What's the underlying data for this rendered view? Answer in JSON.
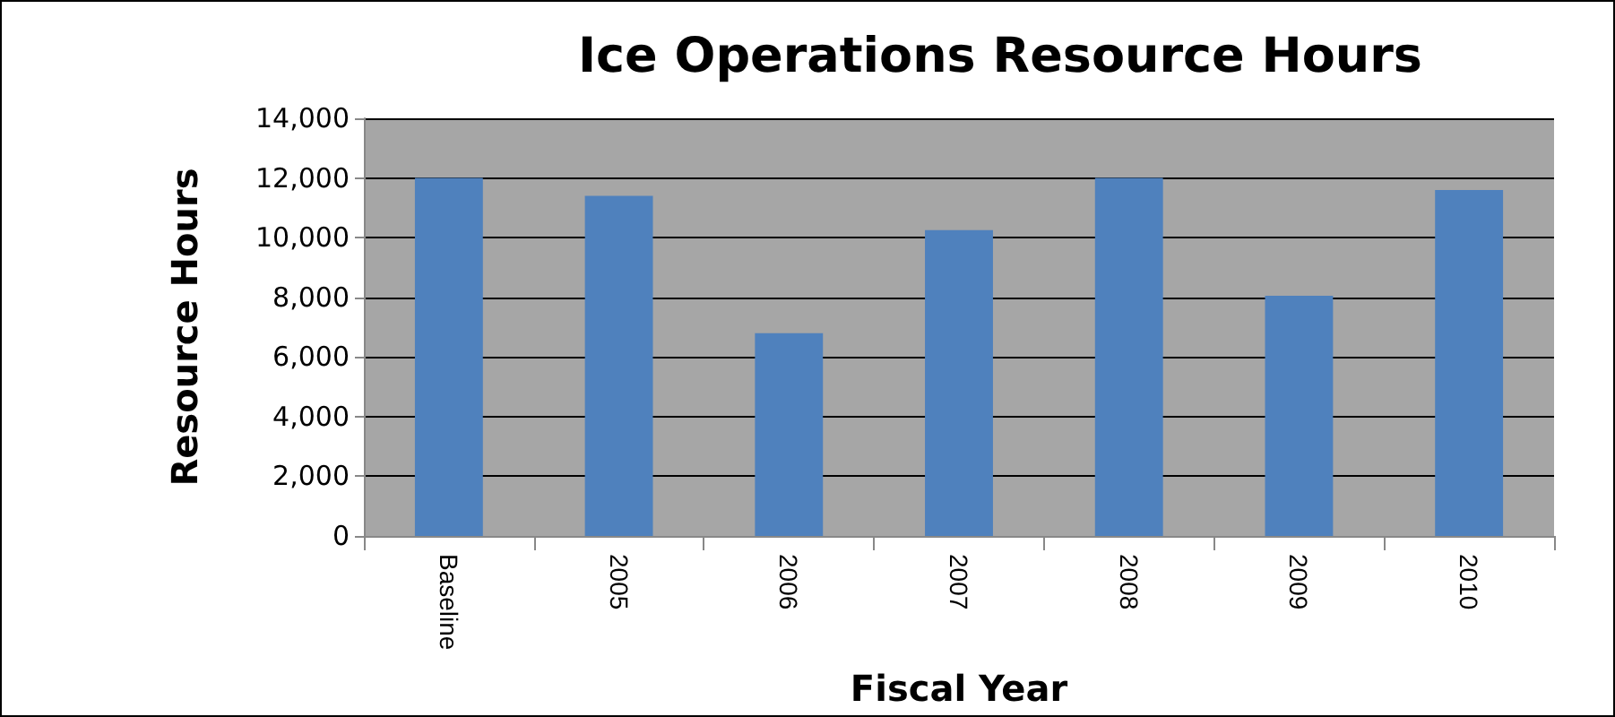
{
  "chart_data": {
    "type": "bar",
    "title": "Ice Operations Resource Hours",
    "xlabel": "Fiscal Year",
    "ylabel": "Resource Hours",
    "categories": [
      "Baseline",
      "2005",
      "2006",
      "2007",
      "2008",
      "2009",
      "2010"
    ],
    "values": [
      12000,
      11400,
      6800,
      10250,
      12000,
      8050,
      11600
    ],
    "color": "#4f81bd",
    "ylim": [
      0,
      14000
    ],
    "yticks": [
      0,
      {
        "value": 2000,
        "label": "2,000"
      },
      {
        "value": 4000,
        "label": "4,000"
      },
      {
        "value": 6000,
        "label": "6,000"
      },
      {
        "value": 8000,
        "label": "8,000"
      },
      {
        "value": 10000,
        "label": "10,000"
      },
      {
        "value": 12000,
        "label": "12,000"
      },
      {
        "value": 14000,
        "label": "14,000"
      }
    ],
    "grid": "y"
  }
}
